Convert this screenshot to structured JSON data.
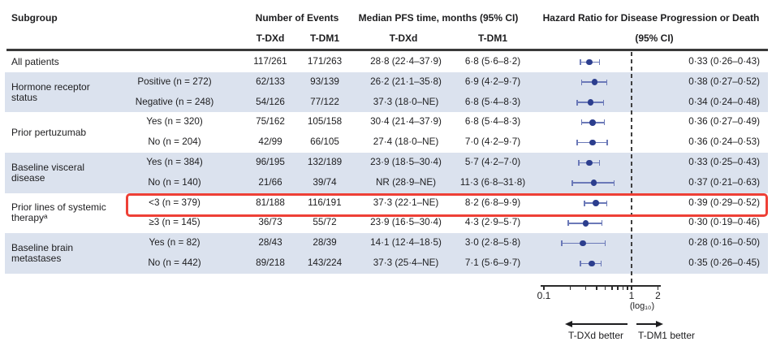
{
  "colors": {
    "row_shade": "#dbe2ee",
    "marker": "#2c3e8e",
    "ci_line": "#6b79b8",
    "highlight_box": "#ee4036",
    "ref_line": "#3f3f3f",
    "axis": "#2b2b2b",
    "header_rule": "#3a3a3a",
    "text": "#1d1d1f"
  },
  "header": {
    "subgroup": "Subgroup",
    "events": "Number of Events",
    "events_tdxd": "T-DXd",
    "events_tdm1": "T-DM1",
    "median": "Median PFS time, months (95% CI)",
    "median_tdxd": "T-DXd",
    "median_tdm1": "T-DM1",
    "hazard": "Hazard Ratio for Disease Progression or Death",
    "hazard_sub": "(95% CI)"
  },
  "axis": {
    "tick_labels": [
      "0.1",
      "1",
      "2"
    ],
    "log_label": "(log₁₀)",
    "left_arrow_label": "T-DXd better",
    "right_arrow_label": "T-DM1 better"
  },
  "chart_data": {
    "type": "forest",
    "x_scale": "log10",
    "x_min": 0.1,
    "x_ref": 1,
    "x_max": 2,
    "ticks": [
      0.1,
      0.2,
      0.3,
      0.4,
      0.5,
      0.6,
      0.7,
      0.8,
      0.9,
      1,
      2
    ],
    "groups": [
      {
        "label": "All patients",
        "start": 0,
        "span": 1
      },
      {
        "label": "Hormone receptor status",
        "start": 1,
        "span": 2
      },
      {
        "label": "Prior pertuzumab",
        "start": 3,
        "span": 2
      },
      {
        "label": "Baseline visceral disease",
        "start": 5,
        "span": 2
      },
      {
        "label": "Prior lines of systemic therapyᵃ",
        "start": 7,
        "span": 2
      },
      {
        "label": "Baseline brain metastases",
        "start": 9,
        "span": 2
      }
    ],
    "rows": [
      {
        "label": "",
        "ev_tdxd": "117/261",
        "ev_tdm1": "171/263",
        "med_tdxd": "28·8 (22·4–37·9)",
        "med_tdm1": "6·8 (5·6–8·2)",
        "hr_text": "0·33 (0·26–0·43)",
        "hr": 0.33,
        "lo": 0.26,
        "hi": 0.43,
        "shaded": false,
        "highlighted": false
      },
      {
        "label": "Positive (n = 272)",
        "ev_tdxd": "62/133",
        "ev_tdm1": "93/139",
        "med_tdxd": "26·2 (21·1–35·8)",
        "med_tdm1": "6·9 (4·2–9·7)",
        "hr_text": "0·38 (0·27–0·52)",
        "hr": 0.38,
        "lo": 0.27,
        "hi": 0.52,
        "shaded": true,
        "highlighted": false
      },
      {
        "label": "Negative (n = 248)",
        "ev_tdxd": "54/126",
        "ev_tdm1": "77/122",
        "med_tdxd": "37·3 (18·0–NE)",
        "med_tdm1": "6·8 (5·4–8·3)",
        "hr_text": "0·34 (0·24–0·48)",
        "hr": 0.34,
        "lo": 0.24,
        "hi": 0.48,
        "shaded": true,
        "highlighted": false
      },
      {
        "label": "Yes (n = 320)",
        "ev_tdxd": "75/162",
        "ev_tdm1": "105/158",
        "med_tdxd": "30·4 (21·4–37·9)",
        "med_tdm1": "6·8 (5·4–8·3)",
        "hr_text": "0·36 (0·27–0·49)",
        "hr": 0.36,
        "lo": 0.27,
        "hi": 0.49,
        "shaded": false,
        "highlighted": false
      },
      {
        "label": "No (n = 204)",
        "ev_tdxd": "42/99",
        "ev_tdm1": "66/105",
        "med_tdxd": "27·4 (18·0–NE)",
        "med_tdm1": "7·0 (4·2–9·7)",
        "hr_text": "0·36 (0·24–0·53)",
        "hr": 0.36,
        "lo": 0.24,
        "hi": 0.53,
        "shaded": false,
        "highlighted": false
      },
      {
        "label": "Yes (n = 384)",
        "ev_tdxd": "96/195",
        "ev_tdm1": "132/189",
        "med_tdxd": "23·9 (18·5–30·4)",
        "med_tdm1": "5·7 (4·2–7·0)",
        "hr_text": "0·33 (0·25–0·43)",
        "hr": 0.33,
        "lo": 0.25,
        "hi": 0.43,
        "shaded": true,
        "highlighted": false
      },
      {
        "label": "No (n = 140)",
        "ev_tdxd": "21/66",
        "ev_tdm1": "39/74",
        "med_tdxd": "NR (28·9–NE)",
        "med_tdm1": "11·3 (6·8–31·8)",
        "hr_text": "0·37 (0·21–0·63)",
        "hr": 0.37,
        "lo": 0.21,
        "hi": 0.63,
        "shaded": true,
        "highlighted": false
      },
      {
        "label": "<3 (n = 379)",
        "ev_tdxd": "81/188",
        "ev_tdm1": "116/191",
        "med_tdxd": "37·3 (22·1–NE)",
        "med_tdm1": "8·2 (6·8–9·9)",
        "hr_text": "0·39 (0·29–0·52)",
        "hr": 0.39,
        "lo": 0.29,
        "hi": 0.52,
        "shaded": false,
        "highlighted": true
      },
      {
        "label": "≥3 (n = 145)",
        "ev_tdxd": "36/73",
        "ev_tdm1": "55/72",
        "med_tdxd": "23·9 (16·5–30·4)",
        "med_tdm1": "4·3 (2·9–5·7)",
        "hr_text": "0·30 (0·19–0·46)",
        "hr": 0.3,
        "lo": 0.19,
        "hi": 0.46,
        "shaded": false,
        "highlighted": false
      },
      {
        "label": "Yes (n = 82)",
        "ev_tdxd": "28/43",
        "ev_tdm1": "28/39",
        "med_tdxd": "14·1 (12·4–18·5)",
        "med_tdm1": "3·0 (2·8–5·8)",
        "hr_text": "0·28 (0·16–0·50)",
        "hr": 0.28,
        "lo": 0.16,
        "hi": 0.5,
        "shaded": true,
        "highlighted": false
      },
      {
        "label": "No (n = 442)",
        "ev_tdxd": "89/218",
        "ev_tdm1": "143/224",
        "med_tdxd": "37·3 (25·4–NE)",
        "med_tdm1": "7·1 (5·6–9·7)",
        "hr_text": "0·35 (0·26–0·45)",
        "hr": 0.35,
        "lo": 0.26,
        "hi": 0.45,
        "shaded": true,
        "highlighted": false
      }
    ]
  }
}
